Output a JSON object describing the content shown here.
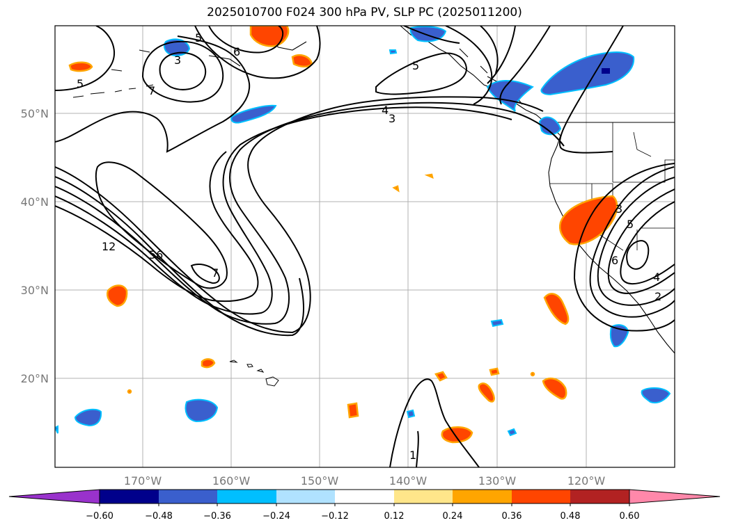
{
  "title": "2025010700 F024 300 hPa PV, SLP PC (2025011200)",
  "lat_labels": [
    "50°N",
    "40°N",
    "30°N",
    "20°N"
  ],
  "lon_labels": [
    "170°W",
    "160°W",
    "150°W",
    "140°W",
    "130°W",
    "120°W"
  ],
  "colorbar": {
    "ticks": [
      "−0.60",
      "−0.48",
      "−0.36",
      "−0.24",
      "−0.12",
      "0.12",
      "0.24",
      "0.36",
      "0.48",
      "0.60"
    ],
    "colors": [
      "#9932cc",
      "#00008b",
      "#3a5fcd",
      "#00bfff",
      "#b0e2ff",
      "#ffffff",
      "#ffe68a",
      "#ffa500",
      "#ff4500",
      "#b22222",
      "#ff88aa"
    ]
  },
  "contour_labels": [
    "5",
    "6",
    "7",
    "5",
    "4",
    "3",
    "5",
    "3",
    "12",
    "56",
    "7",
    "5",
    "3",
    "6",
    "4",
    "2",
    "1"
  ],
  "colors": {
    "pv_positive": "#ff4500",
    "pv_positive_edge": "#ffa500",
    "pv_negative": "#3a5fcd",
    "pv_negative_edge": "#00bfff",
    "gridline": "#b0b0b0"
  }
}
